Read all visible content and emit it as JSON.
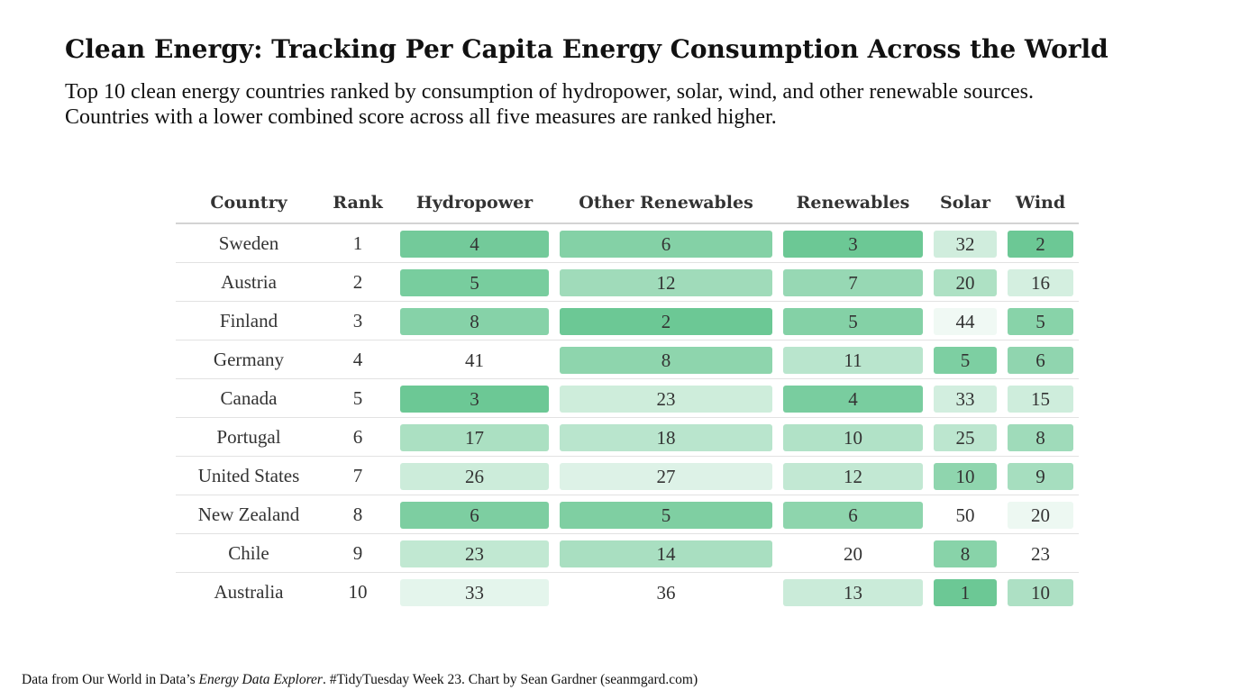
{
  "title": "Clean Energy: Tracking Per Capita Energy Consumption Across the World",
  "subtitle_line1": "Top 10 clean energy countries ranked by consumption of hydropower, solar, wind, and other renewable sources.",
  "subtitle_line2": "Countries with a lower combined score across all five measures are ranked higher.",
  "footer": {
    "prefix": "Data from Our World in Data’s ",
    "source_italic": "Energy Data Explorer",
    "suffix": ". #TidyTuesday Week 23. Chart by Sean Gardner (seanmgard.com)"
  },
  "colors": {
    "scale_high": "#6cc895",
    "scale_low": "#ffffff",
    "header_rule": "#d3d3d3",
    "row_rule": "#e2e2e2"
  },
  "chart_data": {
    "type": "table",
    "columns": [
      "Country",
      "Rank",
      "Hydropower",
      "Other Renewables",
      "Renewables",
      "Solar",
      "Wind"
    ],
    "rows": [
      {
        "country": "Sweden",
        "rank": 1,
        "hydropower": 4,
        "other_renewables": 6,
        "renewables": 3,
        "solar": 32,
        "wind": 2
      },
      {
        "country": "Austria",
        "rank": 2,
        "hydropower": 5,
        "other_renewables": 12,
        "renewables": 7,
        "solar": 20,
        "wind": 16
      },
      {
        "country": "Finland",
        "rank": 3,
        "hydropower": 8,
        "other_renewables": 2,
        "renewables": 5,
        "solar": 44,
        "wind": 5
      },
      {
        "country": "Germany",
        "rank": 4,
        "hydropower": 41,
        "other_renewables": 8,
        "renewables": 11,
        "solar": 5,
        "wind": 6
      },
      {
        "country": "Canada",
        "rank": 5,
        "hydropower": 3,
        "other_renewables": 23,
        "renewables": 4,
        "solar": 33,
        "wind": 15
      },
      {
        "country": "Portugal",
        "rank": 6,
        "hydropower": 17,
        "other_renewables": 18,
        "renewables": 10,
        "solar": 25,
        "wind": 8
      },
      {
        "country": "United States",
        "rank": 7,
        "hydropower": 26,
        "other_renewables": 27,
        "renewables": 12,
        "solar": 10,
        "wind": 9
      },
      {
        "country": "New Zealand",
        "rank": 8,
        "hydropower": 6,
        "other_renewables": 5,
        "renewables": 6,
        "solar": 50,
        "wind": 20
      },
      {
        "country": "Chile",
        "rank": 9,
        "hydropower": 23,
        "other_renewables": 14,
        "renewables": 20,
        "solar": 8,
        "wind": 23
      },
      {
        "country": "Australia",
        "rank": 10,
        "hydropower": 33,
        "other_renewables": 36,
        "renewables": 13,
        "solar": 1,
        "wind": 10
      }
    ]
  }
}
